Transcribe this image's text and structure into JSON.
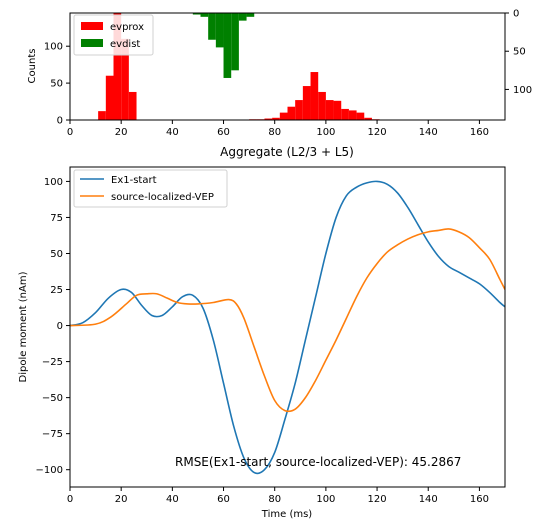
{
  "chart_data": [
    {
      "type": "bar",
      "xlabel": "Aggregate (L2/3 + L5)",
      "ylabel": "Counts",
      "xlim": [
        0,
        170
      ],
      "ylim": [
        0,
        145
      ],
      "secondary_ylim": [
        0,
        140
      ],
      "secondary_y_inverted": true,
      "bin_width": 3,
      "x_ticks": [
        0,
        20,
        40,
        60,
        80,
        100,
        120,
        140,
        160
      ],
      "y_ticks": [
        0,
        50,
        100
      ],
      "secondary_y_ticks": [
        0,
        50,
        100
      ],
      "legend": {
        "position": "top-left"
      },
      "series": [
        {
          "name": "evprox",
          "color": "#ff0000",
          "axis": "left",
          "bins": [
            {
              "x": 11,
              "count": 12
            },
            {
              "x": 14,
              "count": 60
            },
            {
              "x": 17,
              "count": 145
            },
            {
              "x": 20,
              "count": 110
            },
            {
              "x": 23,
              "count": 38
            },
            {
              "x": 70,
              "count": 1
            },
            {
              "x": 73,
              "count": 1
            },
            {
              "x": 76,
              "count": 2
            },
            {
              "x": 79,
              "count": 3
            },
            {
              "x": 82,
              "count": 10
            },
            {
              "x": 85,
              "count": 18
            },
            {
              "x": 88,
              "count": 27
            },
            {
              "x": 91,
              "count": 46
            },
            {
              "x": 94,
              "count": 65
            },
            {
              "x": 97,
              "count": 38
            },
            {
              "x": 100,
              "count": 27
            },
            {
              "x": 103,
              "count": 26
            },
            {
              "x": 106,
              "count": 15
            },
            {
              "x": 109,
              "count": 13
            },
            {
              "x": 112,
              "count": 10
            },
            {
              "x": 115,
              "count": 3
            },
            {
              "x": 118,
              "count": 1
            }
          ]
        },
        {
          "name": "evdist",
          "color": "#008000",
          "axis": "right",
          "bins": [
            {
              "x": 48,
              "count": 2
            },
            {
              "x": 51,
              "count": 5
            },
            {
              "x": 54,
              "count": 35
            },
            {
              "x": 57,
              "count": 45
            },
            {
              "x": 60,
              "count": 85
            },
            {
              "x": 63,
              "count": 75
            },
            {
              "x": 66,
              "count": 10
            },
            {
              "x": 69,
              "count": 5
            }
          ]
        }
      ]
    },
    {
      "type": "line",
      "xlabel": "Time (ms)",
      "ylabel": "Dipole moment (nAm)",
      "xlim": [
        0,
        170
      ],
      "ylim": [
        -112,
        110
      ],
      "x_ticks": [
        0,
        20,
        40,
        60,
        80,
        100,
        120,
        140,
        160
      ],
      "y_ticks": [
        -100,
        -75,
        -50,
        -25,
        0,
        25,
        50,
        75,
        100
      ],
      "legend": {
        "position": "top-left"
      },
      "annotation": "RMSE(Ex1-start, source-localized-VEP): 45.2867",
      "series": [
        {
          "name": "Ex1-start",
          "color": "#1f77b4",
          "points": [
            [
              0,
              0
            ],
            [
              5,
              2
            ],
            [
              10,
              9
            ],
            [
              15,
              19
            ],
            [
              20,
              25
            ],
            [
              24,
              23
            ],
            [
              28,
              14
            ],
            [
              32,
              7
            ],
            [
              36,
              7
            ],
            [
              40,
              13
            ],
            [
              44,
              20
            ],
            [
              48,
              21
            ],
            [
              52,
              12
            ],
            [
              56,
              -10
            ],
            [
              60,
              -40
            ],
            [
              64,
              -70
            ],
            [
              68,
              -92
            ],
            [
              72,
              -102
            ],
            [
              76,
              -100
            ],
            [
              80,
              -88
            ],
            [
              84,
              -65
            ],
            [
              88,
              -40
            ],
            [
              92,
              -10
            ],
            [
              96,
              20
            ],
            [
              100,
              50
            ],
            [
              104,
              75
            ],
            [
              108,
              90
            ],
            [
              112,
              96
            ],
            [
              116,
              99
            ],
            [
              120,
              100
            ],
            [
              124,
              98
            ],
            [
              128,
              92
            ],
            [
              132,
              82
            ],
            [
              136,
              70
            ],
            [
              140,
              58
            ],
            [
              144,
              48
            ],
            [
              148,
              41
            ],
            [
              152,
              37
            ],
            [
              156,
              33
            ],
            [
              160,
              29
            ],
            [
              164,
              23
            ],
            [
              168,
              16
            ],
            [
              170,
              13
            ]
          ]
        },
        {
          "name": "source-localized-VEP",
          "color": "#ff7f0e",
          "points": [
            [
              0,
              0
            ],
            [
              10,
              1
            ],
            [
              16,
              6
            ],
            [
              22,
              15
            ],
            [
              26,
              21
            ],
            [
              30,
              22
            ],
            [
              34,
              22
            ],
            [
              38,
              19
            ],
            [
              42,
              16
            ],
            [
              46,
              15
            ],
            [
              50,
              15
            ],
            [
              56,
              16
            ],
            [
              62,
              18
            ],
            [
              65,
              15
            ],
            [
              68,
              5
            ],
            [
              72,
              -15
            ],
            [
              76,
              -35
            ],
            [
              80,
              -52
            ],
            [
              84,
              -59
            ],
            [
              88,
              -58
            ],
            [
              92,
              -50
            ],
            [
              96,
              -38
            ],
            [
              100,
              -24
            ],
            [
              104,
              -10
            ],
            [
              108,
              5
            ],
            [
              112,
              20
            ],
            [
              116,
              33
            ],
            [
              120,
              43
            ],
            [
              124,
              51
            ],
            [
              128,
              56
            ],
            [
              132,
              60
            ],
            [
              136,
              63
            ],
            [
              140,
              65
            ],
            [
              144,
              66
            ],
            [
              148,
              67
            ],
            [
              152,
              65
            ],
            [
              156,
              61
            ],
            [
              160,
              54
            ],
            [
              164,
              46
            ],
            [
              168,
              32
            ],
            [
              170,
              25
            ]
          ]
        }
      ]
    }
  ]
}
